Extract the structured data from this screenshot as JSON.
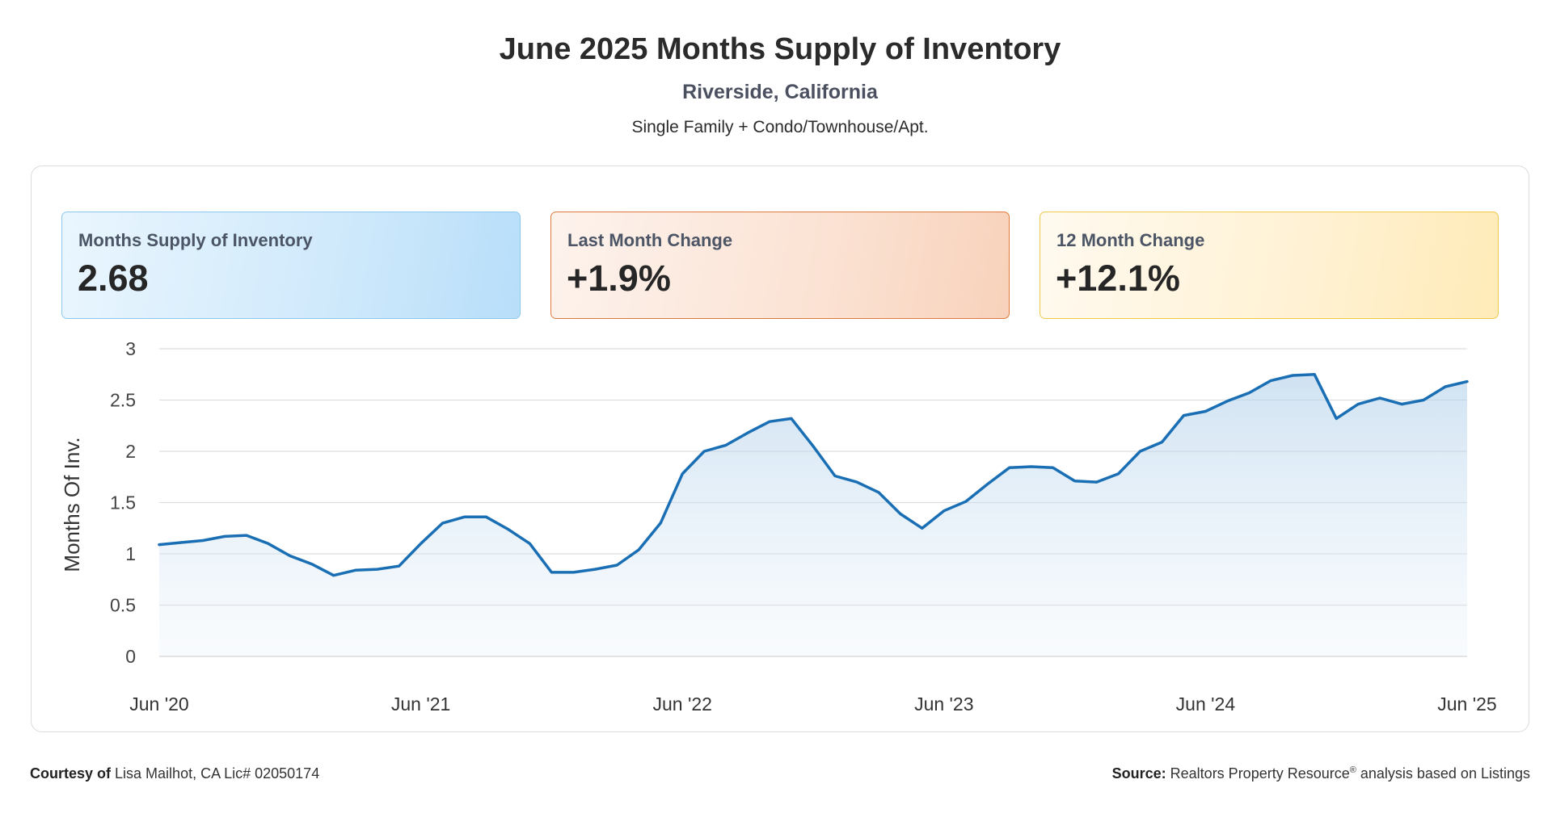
{
  "header": {
    "title": "June 2025 Months Supply of Inventory",
    "subtitle": "Riverside, California",
    "property_types": "Single Family + Condo/Townhouse/Apt."
  },
  "cards": [
    {
      "label": "Months Supply of Inventory",
      "value": "2.68",
      "color": "#8cc8ee"
    },
    {
      "label": "Last Month Change",
      "value": "+1.9%",
      "color": "#e07a3c"
    },
    {
      "label": "12 Month Change",
      "value": "+12.1%",
      "color": "#efc94a"
    }
  ],
  "chart_data": {
    "type": "area",
    "ylabel": "Months Of Inv.",
    "ylim": [
      0,
      3
    ],
    "yticks": [
      "0",
      "0.5",
      "1",
      "1.5",
      "2",
      "2.5",
      "3"
    ],
    "xticks": [
      "Jun '20",
      "Jun '21",
      "Jun '22",
      "Jun '23",
      "Jun '24",
      "Jun '25"
    ],
    "grid": true,
    "line_color": "#1a6fb4",
    "x_start": "Jun 2020",
    "x_end": "Jun 2025",
    "series": [
      {
        "values": [
          1.09,
          1.11,
          1.13,
          1.17,
          1.18,
          1.1,
          0.98,
          0.9,
          0.79,
          0.84,
          0.85,
          0.88,
          1.1,
          1.3,
          1.36,
          1.36,
          1.24,
          1.1,
          0.82,
          0.82,
          0.85,
          0.89,
          1.04,
          1.3,
          1.78,
          2.0,
          2.06,
          2.18,
          2.29,
          2.32,
          2.05,
          1.76,
          1.7,
          1.6,
          1.39,
          1.25,
          1.42,
          1.51,
          1.68,
          1.84,
          1.85,
          1.84,
          1.71,
          1.7,
          1.78,
          2.0,
          2.09,
          2.35,
          2.39,
          2.49,
          2.57,
          2.69,
          2.74,
          2.75,
          2.32,
          2.46,
          2.52,
          2.46,
          2.5,
          2.63,
          2.68
        ]
      }
    ]
  },
  "footer": {
    "courtesy_label": "Courtesy of",
    "courtesy_text": "Lisa Mailhot, CA Lic# 02050174",
    "source_label": "Source:",
    "source_text_1": "Realtors Property Resource",
    "source_reg": "®",
    "source_text_2": " analysis based on Listings"
  }
}
